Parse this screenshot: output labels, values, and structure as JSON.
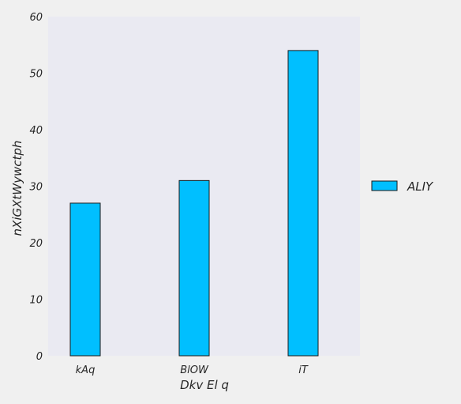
{
  "chart_data": {
    "type": "bar",
    "categories": [
      "kAq",
      "BlOW",
      "iT"
    ],
    "series": [
      {
        "name": "ALIY",
        "values": [
          27,
          31,
          54
        ]
      }
    ],
    "xlabel": "Dkv El  q",
    "ylabel": "nXiGXtWywctph",
    "ylim": [
      0,
      60
    ],
    "yticks": [
      0,
      10,
      20,
      30,
      40,
      50,
      60
    ],
    "grid": false,
    "legend_position": "right"
  },
  "colors": {
    "bar_fill": "#00bfff",
    "bar_edge": "#1a1a1a",
    "plot_background": "#eaeaf2",
    "page_background": "#f0f0f0"
  }
}
